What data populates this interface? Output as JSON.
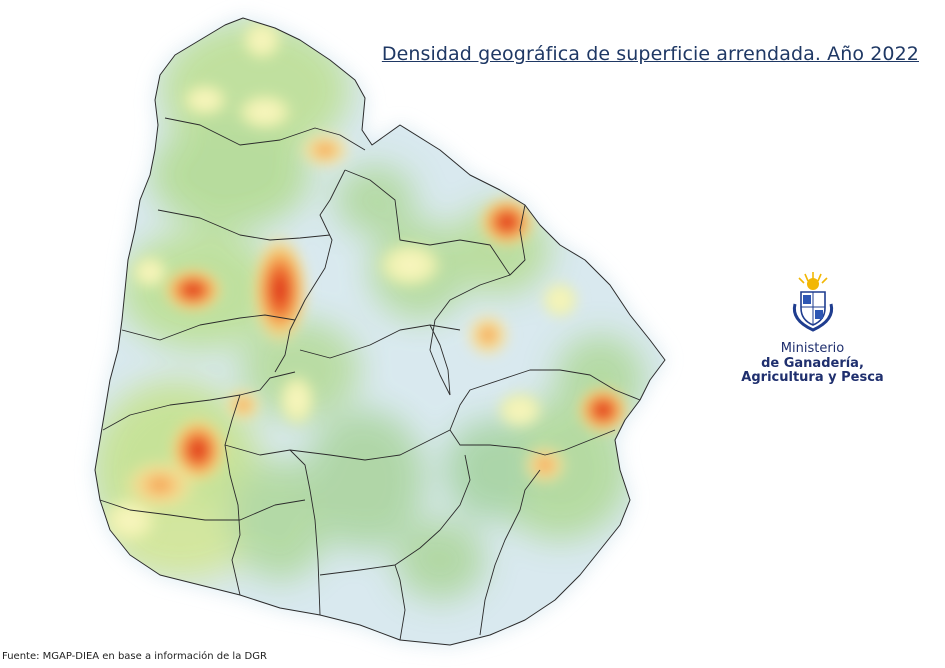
{
  "map": {
    "title": "Densidad geográfica de superficie arrendada. Año 2022",
    "source": "Fuente: MGAP-DIEA en base a información de la DGR",
    "legend": "none",
    "color_scale": [
      "#cfe3ec",
      "#9fd0a6",
      "#c7e08e",
      "#f4f1a6",
      "#f6b25c",
      "#e33a1e"
    ],
    "colors": {
      "title": "#1f3864",
      "border": "#2b2b2b"
    }
  },
  "logo": {
    "icon": "sun-shield-emblem-icon",
    "line1": "Ministerio",
    "line2": "de Ganadería,",
    "line3": "Agricultura y Pesca"
  }
}
